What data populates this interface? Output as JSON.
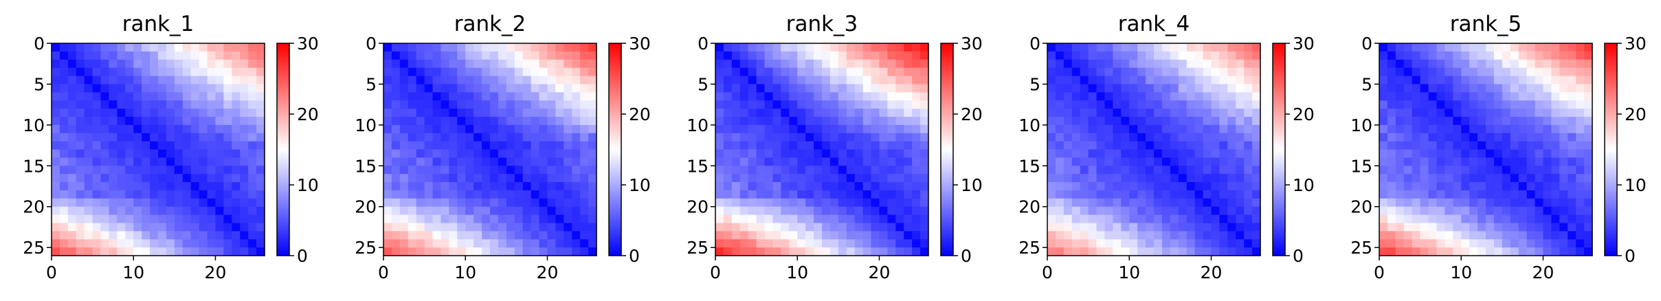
{
  "chart_data": [
    {
      "type": "heatmap",
      "title": "rank_1",
      "size": 26,
      "x_ticks": [
        "0",
        "10",
        "20"
      ],
      "y_ticks": [
        "0",
        "5",
        "10",
        "15",
        "20",
        "25"
      ],
      "colorbar_ticks": [
        "0",
        "10",
        "20",
        "30"
      ],
      "vmin": 0,
      "vmax": 30,
      "center": 15,
      "colormap": [
        "#0000ff",
        "#ffffff",
        "#ff0000"
      ],
      "corner_top_right": 24,
      "corner_bottom_left": 25,
      "far_exponent": 1.6
    },
    {
      "type": "heatmap",
      "title": "rank_2",
      "size": 26,
      "x_ticks": [
        "0",
        "10",
        "20"
      ],
      "y_ticks": [
        "0",
        "5",
        "10",
        "15",
        "20",
        "25"
      ],
      "colorbar_ticks": [
        "0",
        "10",
        "20",
        "30"
      ],
      "vmin": 0,
      "vmax": 30,
      "center": 15,
      "colormap": [
        "#0000ff",
        "#ffffff",
        "#ff0000"
      ],
      "corner_top_right": 26,
      "corner_bottom_left": 25,
      "far_exponent": 1.5
    },
    {
      "type": "heatmap",
      "title": "rank_3",
      "size": 26,
      "x_ticks": [
        "0",
        "10",
        "20"
      ],
      "y_ticks": [
        "0",
        "5",
        "10",
        "15",
        "20",
        "25"
      ],
      "colorbar_ticks": [
        "0",
        "10",
        "20",
        "30"
      ],
      "vmin": 0,
      "vmax": 30,
      "center": 15,
      "colormap": [
        "#0000ff",
        "#ffffff",
        "#ff0000"
      ],
      "corner_top_right": 29,
      "corner_bottom_left": 27,
      "far_exponent": 1.2
    },
    {
      "type": "heatmap",
      "title": "rank_4",
      "size": 26,
      "x_ticks": [
        "0",
        "10",
        "20"
      ],
      "y_ticks": [
        "0",
        "5",
        "10",
        "15",
        "20",
        "25"
      ],
      "colorbar_ticks": [
        "0",
        "10",
        "20",
        "30"
      ],
      "vmin": 0,
      "vmax": 30,
      "center": 15,
      "colormap": [
        "#0000ff",
        "#ffffff",
        "#ff0000"
      ],
      "corner_top_right": 24,
      "corner_bottom_left": 23,
      "far_exponent": 1.6
    },
    {
      "type": "heatmap",
      "title": "rank_5",
      "size": 26,
      "x_ticks": [
        "0",
        "10",
        "20"
      ],
      "y_ticks": [
        "0",
        "5",
        "10",
        "15",
        "20",
        "25"
      ],
      "colorbar_ticks": [
        "0",
        "10",
        "20",
        "30"
      ],
      "vmin": 0,
      "vmax": 30,
      "center": 15,
      "colormap": [
        "#0000ff",
        "#ffffff",
        "#ff0000"
      ],
      "corner_top_right": 26,
      "corner_bottom_left": 26,
      "far_exponent": 1.4
    }
  ]
}
